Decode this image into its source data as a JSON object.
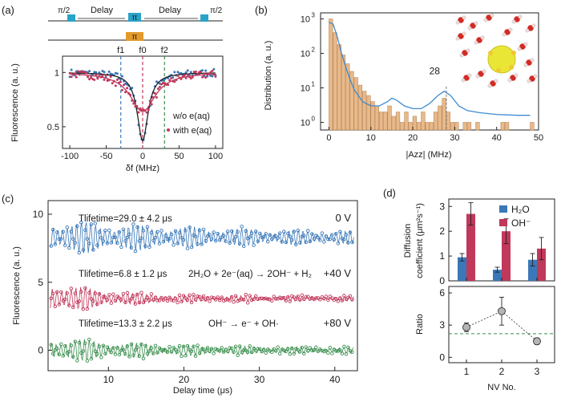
{
  "panel_labels": {
    "a": "(a)",
    "b": "(b)",
    "c": "(c)",
    "d": "(d)"
  },
  "colors": {
    "blue": "#3a78b8",
    "red": "#c0385a",
    "green": "#3b8f4f",
    "orange": "#e8b98a",
    "teal": "#2aa3c9",
    "gold": "#e39a2c",
    "fit_blue": "#3e8ad0"
  },
  "chart_data": [
    {
      "id": "a",
      "type": "line",
      "pulse_sequence": {
        "pulses": [
          "π/2",
          "π",
          "π/2"
        ],
        "delay_label": "Delay",
        "second_channel_pulse": "π"
      },
      "xlabel": "δf (MHz)",
      "ylabel": "Fluorescence (a. u.)",
      "xlim": [
        -110,
        110
      ],
      "ylim": [
        0.3,
        1.15
      ],
      "xticks": [
        -100,
        -50,
        0,
        50,
        100
      ],
      "yticks": [
        0.5,
        1
      ],
      "ytick_labels": [
        "0.5",
        "1"
      ],
      "markers": [
        {
          "x": -30,
          "label": "f1",
          "color": "#3a78b8"
        },
        {
          "x": 0,
          "label": "f0",
          "color": "#c0385a"
        },
        {
          "x": 30,
          "label": "f2",
          "color": "#3b8f4f"
        }
      ],
      "legend": {
        "placement": "bottom-right",
        "entries": [
          "w/o e(aq)",
          "with e(aq)"
        ]
      },
      "series": [
        {
          "name": "w/o e(aq)",
          "color": "#3a78b8",
          "model": "lorentzian-dip",
          "baseline": 1.0,
          "depth": 0.63,
          "width": 18
        },
        {
          "name": "with e(aq)",
          "color": "#c0385a",
          "model": "lorentzian-dip",
          "baseline": 1.0,
          "depth": 0.36,
          "width": 42
        }
      ]
    },
    {
      "id": "b",
      "type": "bar",
      "xlabel": "|Azz| (MHz)",
      "ylabel": "Distribution (a. u.)",
      "yscale": "log",
      "xlim": [
        -2,
        50
      ],
      "ylim": [
        0.6,
        1500
      ],
      "xticks": [
        0,
        10,
        20,
        30,
        40,
        50
      ],
      "ytick_exponents": [
        0,
        1,
        2,
        3
      ],
      "annotation": {
        "x": 28,
        "label": "28"
      },
      "bin_width": 1,
      "bins": [
        {
          "x": 0.5,
          "y": 1000
        },
        {
          "x": 1.5,
          "y": 400
        },
        {
          "x": 2.5,
          "y": 180
        },
        {
          "x": 3.5,
          "y": 90
        },
        {
          "x": 4.5,
          "y": 50
        },
        {
          "x": 5.5,
          "y": 30
        },
        {
          "x": 6.5,
          "y": 20
        },
        {
          "x": 7.5,
          "y": 12
        },
        {
          "x": 8.5,
          "y": 8
        },
        {
          "x": 9.5,
          "y": 6
        },
        {
          "x": 10.5,
          "y": 4
        },
        {
          "x": 11.5,
          "y": 3
        },
        {
          "x": 12.5,
          "y": 2
        },
        {
          "x": 13.5,
          "y": 2
        },
        {
          "x": 14.5,
          "y": 3
        },
        {
          "x": 15.5,
          "y": 1.5
        },
        {
          "x": 16.5,
          "y": 2
        },
        {
          "x": 17.5,
          "y": 1
        },
        {
          "x": 18.5,
          "y": 2
        },
        {
          "x": 19.5,
          "y": 1
        },
        {
          "x": 20.5,
          "y": 1.5
        },
        {
          "x": 21.5,
          "y": 1
        },
        {
          "x": 22.5,
          "y": 2
        },
        {
          "x": 23.5,
          "y": 1
        },
        {
          "x": 24.5,
          "y": 1
        },
        {
          "x": 25.5,
          "y": 2
        },
        {
          "x": 26.5,
          "y": 3
        },
        {
          "x": 27.5,
          "y": 5
        },
        {
          "x": 28.5,
          "y": 2
        },
        {
          "x": 29.5,
          "y": 1
        },
        {
          "x": 30.5,
          "y": 1
        },
        {
          "x": 32.5,
          "y": 1
        },
        {
          "x": 33.5,
          "y": 1
        },
        {
          "x": 35.5,
          "y": 1
        },
        {
          "x": 41.5,
          "y": 1
        },
        {
          "x": 42.5,
          "y": 1
        },
        {
          "x": 48.5,
          "y": 1
        }
      ],
      "curve": [
        [
          0,
          800
        ],
        [
          1,
          700
        ],
        [
          2,
          300
        ],
        [
          3,
          100
        ],
        [
          4,
          40
        ],
        [
          5,
          18
        ],
        [
          6,
          9
        ],
        [
          8,
          4
        ],
        [
          10,
          3
        ],
        [
          12,
          3
        ],
        [
          14,
          4
        ],
        [
          15,
          5
        ],
        [
          16,
          4.5
        ],
        [
          18,
          3
        ],
        [
          20,
          2.5
        ],
        [
          22,
          2.5
        ],
        [
          24,
          3.5
        ],
        [
          26,
          6
        ],
        [
          27.5,
          8
        ],
        [
          29,
          6
        ],
        [
          31,
          3
        ],
        [
          33,
          2.2
        ],
        [
          36,
          1.9
        ],
        [
          40,
          1.7
        ],
        [
          45,
          1.6
        ],
        [
          48,
          1.6
        ]
      ]
    },
    {
      "id": "c",
      "type": "scatter",
      "xlabel": "Delay time (μs)",
      "ylabel": "Fluorescence (a. u.)",
      "xlim": [
        2,
        43
      ],
      "ylim": [
        -1.5,
        11
      ],
      "xticks": [
        10,
        20,
        30,
        40
      ],
      "yticks": [
        0,
        5,
        10
      ],
      "series": [
        {
          "name": "0 V",
          "color": "#3a78b8",
          "offset": 8.3,
          "amplitude": 1.2,
          "lifetime": 29.0,
          "lifetime_label": "Tlifetime=29.0 ± 4.2 μs",
          "reaction": "",
          "voltage": "0 V"
        },
        {
          "name": "+40 V",
          "color": "#c0385a",
          "offset": 3.8,
          "amplitude": 1.3,
          "lifetime": 6.8,
          "lifetime_label": "Tlifetime=6.8 ± 1.2 μs",
          "reaction": "2H₂O + 2e⁻(aq) → 2OH⁻ + H₂",
          "voltage": "+40 V"
        },
        {
          "name": "+80 V",
          "color": "#3b8f4f",
          "offset": 0.0,
          "amplitude": 0.9,
          "lifetime": 13.3,
          "lifetime_label": "Tlifetime=13.3 ± 2.2 μs",
          "reaction": "OH⁻ → e⁻ + OH·",
          "voltage": "+80 V"
        }
      ]
    },
    {
      "id": "d-top",
      "type": "bar",
      "ylabel_line1": "Diffusion",
      "ylabel_line2": "coefficient (μm²s⁻¹)",
      "ylim": [
        0,
        3.3
      ],
      "yticks": [
        0,
        1,
        2,
        3
      ],
      "categories": [
        "1",
        "2",
        "3"
      ],
      "legend": {
        "placement": "top-right"
      },
      "series": [
        {
          "name": "H₂O",
          "color": "#3a78b8",
          "values": [
            0.95,
            0.45,
            0.85
          ],
          "errors": [
            0.15,
            0.1,
            0.25
          ]
        },
        {
          "name": "OH⁻",
          "color": "#c0385a",
          "values": [
            2.7,
            2.0,
            1.3
          ],
          "errors": [
            0.45,
            0.5,
            0.45
          ]
        }
      ]
    },
    {
      "id": "d-bottom",
      "type": "scatter",
      "xlabel": "NV No.",
      "ylabel": "Ratio",
      "ylim": [
        -0.5,
        6.6
      ],
      "yticks": [
        0,
        3,
        6
      ],
      "xticks": [
        1,
        2,
        3
      ],
      "categories": [
        "1",
        "2",
        "3"
      ],
      "values": [
        2.8,
        4.3,
        1.5
      ],
      "errors": [
        0.4,
        1.3,
        0.3
      ],
      "reference_line": 2.2
    }
  ]
}
